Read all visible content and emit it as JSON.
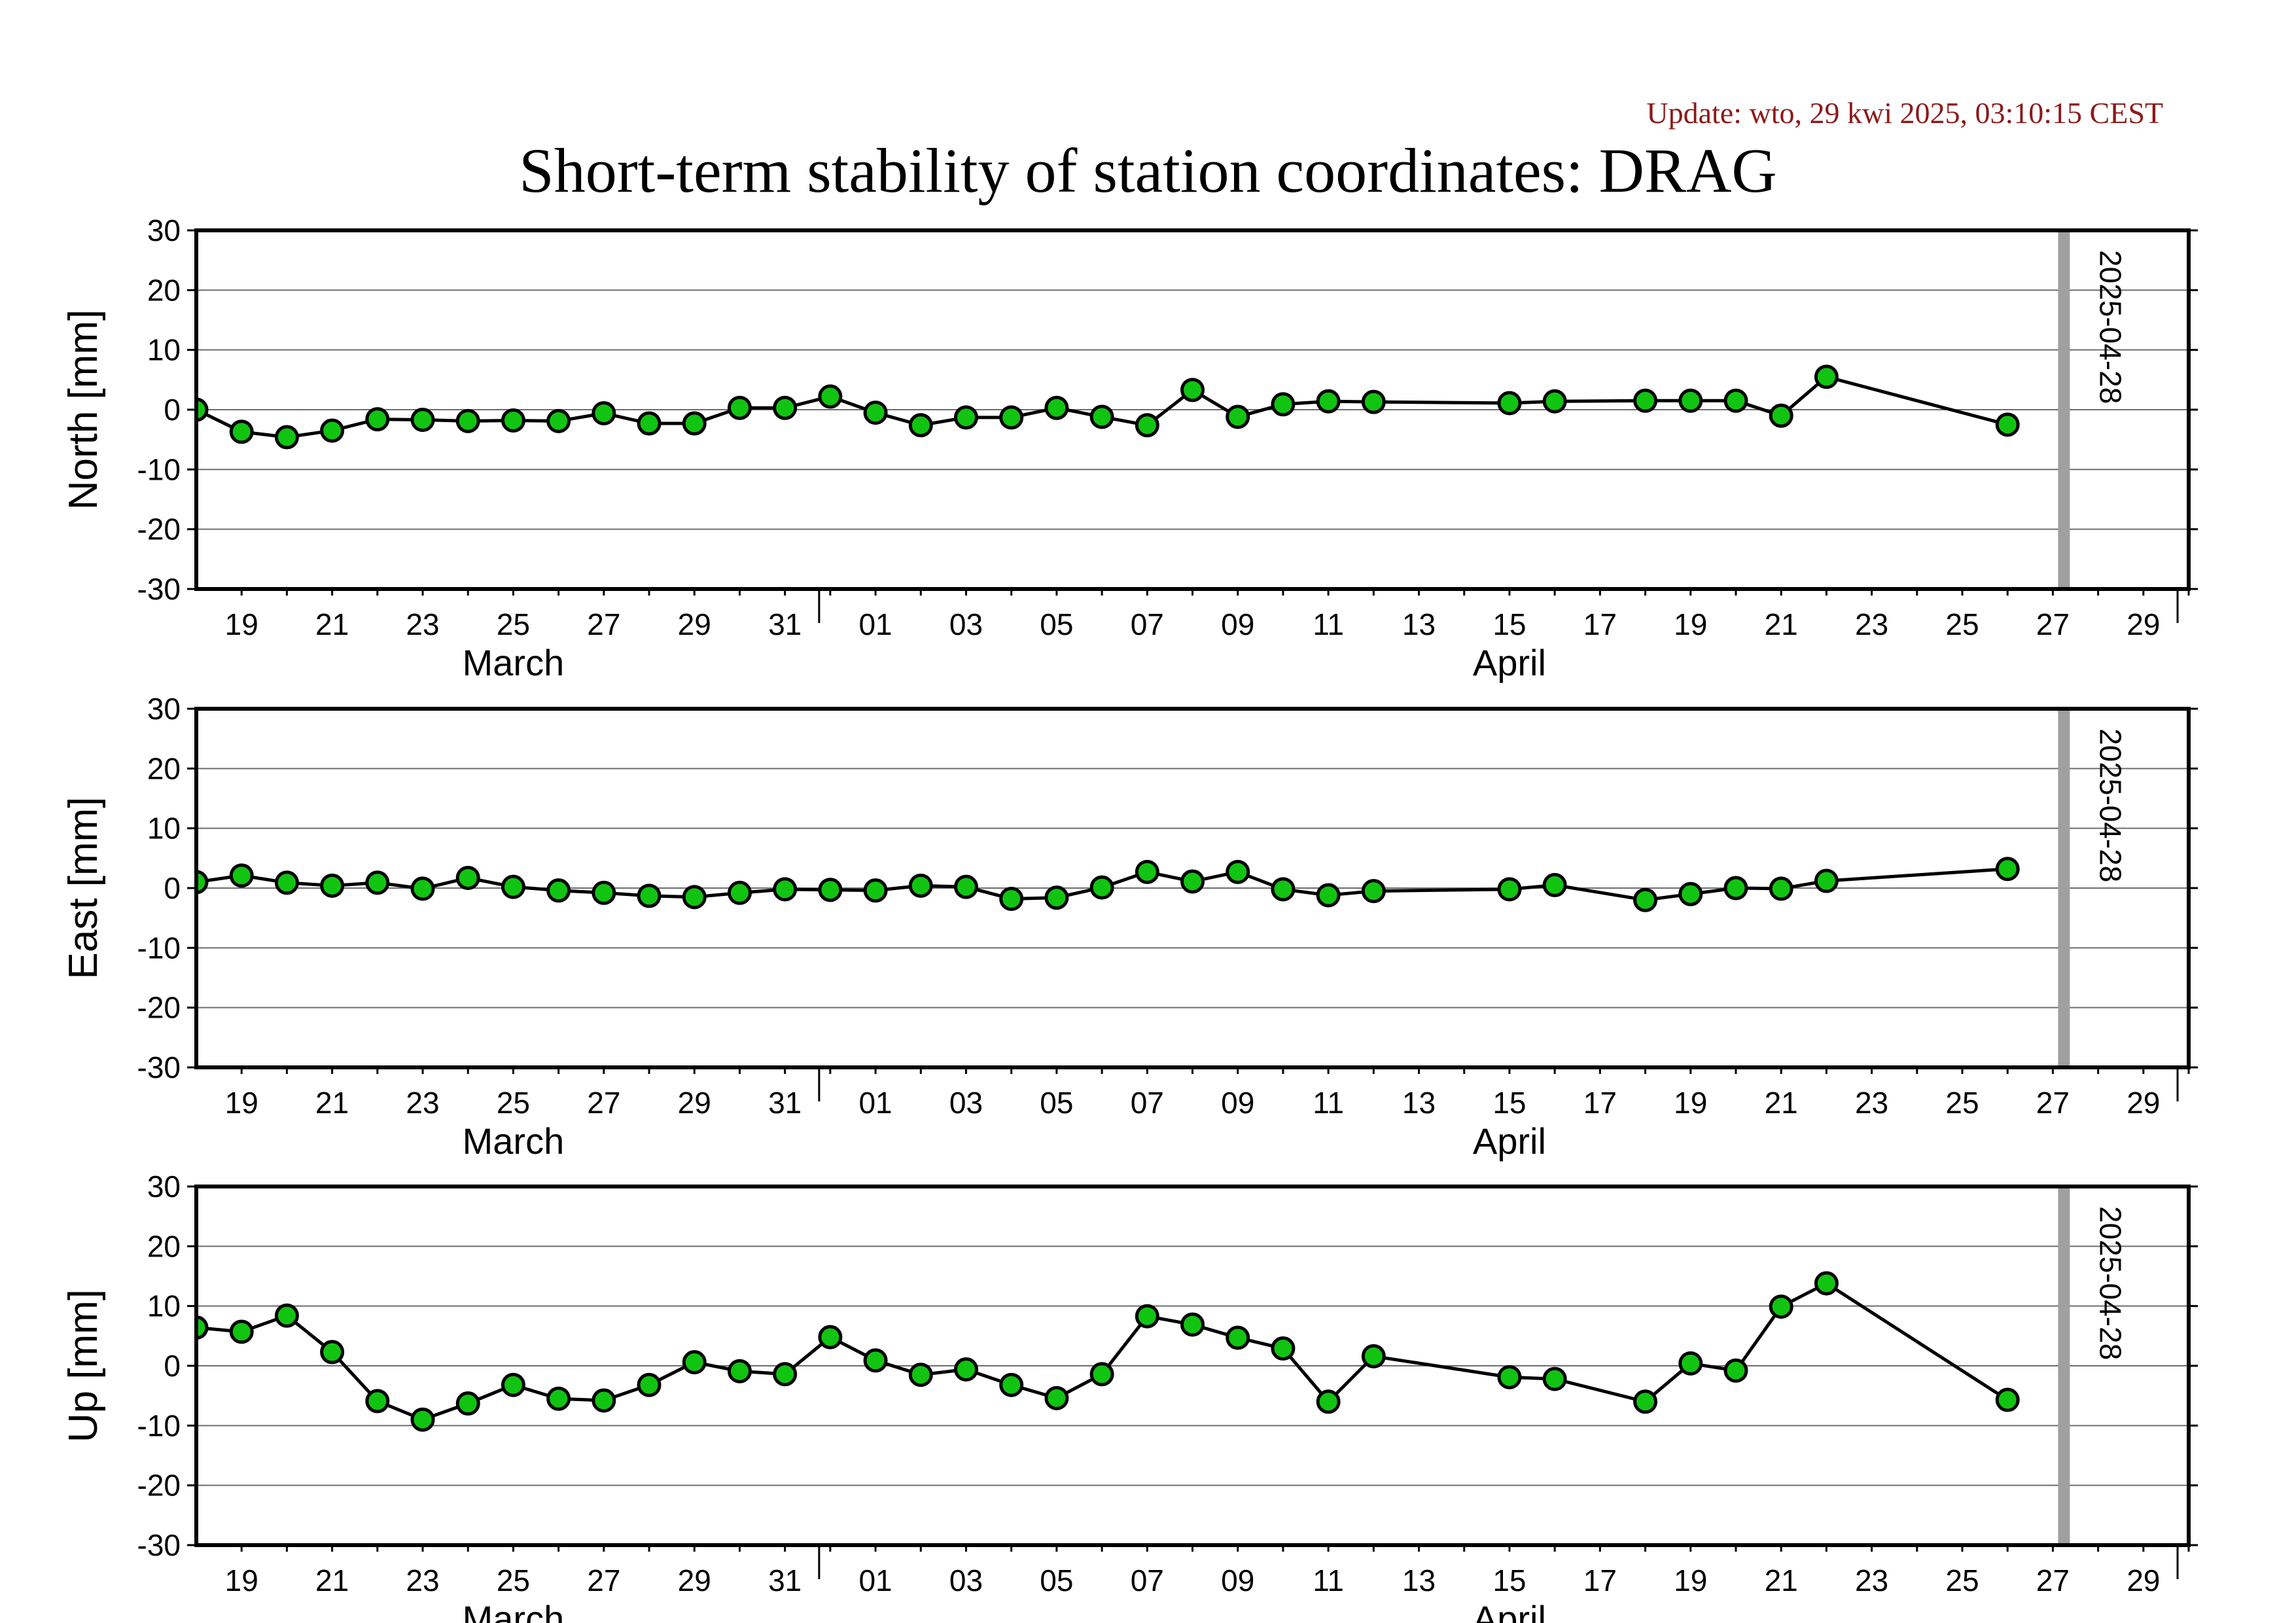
{
  "update_text": "Update: wto, 29 kwi 2025, 03:10:15 CEST",
  "title": "Short-term stability of station coordinates: DRAG",
  "colors": {
    "marker_fill": "#11c411",
    "marker_edge": "#000000",
    "line": "#000000",
    "grid": "#6e6e6e",
    "date_bar": "#a0a0a0"
  },
  "chart_data": [
    {
      "type": "line",
      "ylabel": "North [mm]",
      "ylim": [
        -30,
        30
      ],
      "yticks": [
        30,
        20,
        10,
        0,
        -10,
        -20,
        -30
      ],
      "grid": true,
      "x_range": [
        "2025-03-18",
        "2025-05-01"
      ],
      "x_tick_labels": [
        "19",
        "21",
        "23",
        "25",
        "27",
        "29",
        "31",
        "01",
        "03",
        "05",
        "07",
        "09",
        "11",
        "13",
        "15",
        "17",
        "19",
        "21",
        "23",
        "25",
        "27",
        "29",
        "01"
      ],
      "month_labels": [
        "March",
        "April"
      ],
      "marker_date_label": "2025-04-28",
      "x": [
        "2025-03-18",
        "2025-03-19",
        "2025-03-20",
        "2025-03-21",
        "2025-03-22",
        "2025-03-23",
        "2025-03-24",
        "2025-03-25",
        "2025-03-26",
        "2025-03-27",
        "2025-03-28",
        "2025-03-29",
        "2025-03-30",
        "2025-03-31",
        "2025-04-01",
        "2025-04-02",
        "2025-04-03",
        "2025-04-04",
        "2025-04-05",
        "2025-04-06",
        "2025-04-07",
        "2025-04-08",
        "2025-04-09",
        "2025-04-10",
        "2025-04-11",
        "2025-04-12",
        "2025-04-13",
        "2025-04-16",
        "2025-04-17",
        "2025-04-19",
        "2025-04-20",
        "2025-04-21",
        "2025-04-22",
        "2025-04-23",
        "2025-04-27"
      ],
      "values": [
        0,
        -3.7,
        -4.6,
        -3.5,
        -1.6,
        -1.7,
        -1.9,
        -1.8,
        -1.9,
        -0.6,
        -2.3,
        -2.3,
        0.3,
        0.3,
        2.2,
        -0.5,
        -2.6,
        -1.3,
        -1.3,
        0.3,
        -1.2,
        -2.6,
        3.3,
        -1.2,
        0.9,
        1.4,
        1.3,
        1.1,
        1.4,
        1.5,
        1.5,
        1.5,
        -1.0,
        5.5,
        -2.5
      ]
    },
    {
      "type": "line",
      "ylabel": "East [mm]",
      "ylim": [
        -30,
        30
      ],
      "yticks": [
        30,
        20,
        10,
        0,
        -10,
        -20,
        -30
      ],
      "grid": true,
      "x_range": [
        "2025-03-18",
        "2025-05-01"
      ],
      "x_tick_labels": [
        "19",
        "21",
        "23",
        "25",
        "27",
        "29",
        "31",
        "01",
        "03",
        "05",
        "07",
        "09",
        "11",
        "13",
        "15",
        "17",
        "19",
        "21",
        "23",
        "25",
        "27",
        "29",
        "01"
      ],
      "month_labels": [
        "March",
        "April"
      ],
      "marker_date_label": "2025-04-28",
      "x": [
        "2025-03-18",
        "2025-03-19",
        "2025-03-20",
        "2025-03-21",
        "2025-03-22",
        "2025-03-23",
        "2025-03-24",
        "2025-03-25",
        "2025-03-26",
        "2025-03-27",
        "2025-03-28",
        "2025-03-29",
        "2025-03-30",
        "2025-03-31",
        "2025-04-01",
        "2025-04-02",
        "2025-04-03",
        "2025-04-04",
        "2025-04-05",
        "2025-04-06",
        "2025-04-07",
        "2025-04-08",
        "2025-04-09",
        "2025-04-10",
        "2025-04-11",
        "2025-04-12",
        "2025-04-13",
        "2025-04-16",
        "2025-04-17",
        "2025-04-19",
        "2025-04-20",
        "2025-04-21",
        "2025-04-22",
        "2025-04-23",
        "2025-04-27"
      ],
      "values": [
        1.0,
        2.1,
        0.9,
        0.4,
        0.9,
        -0.1,
        1.7,
        0.2,
        -0.4,
        -0.8,
        -1.3,
        -1.5,
        -0.8,
        -0.2,
        -0.3,
        -0.4,
        0.4,
        0.2,
        -1.8,
        -1.6,
        0.1,
        2.7,
        1.1,
        2.7,
        -0.2,
        -1.2,
        -0.5,
        -0.2,
        0.5,
        -2.0,
        -1.0,
        0.0,
        -0.1,
        1.2,
        3.2
      ]
    },
    {
      "type": "line",
      "ylabel": "Up [mm]",
      "ylim": [
        -30,
        30
      ],
      "yticks": [
        30,
        20,
        10,
        0,
        -10,
        -20,
        -30
      ],
      "grid": true,
      "x_range": [
        "2025-03-18",
        "2025-05-01"
      ],
      "x_tick_labels": [
        "19",
        "21",
        "23",
        "25",
        "27",
        "29",
        "31",
        "01",
        "03",
        "05",
        "07",
        "09",
        "11",
        "13",
        "15",
        "17",
        "19",
        "21",
        "23",
        "25",
        "27",
        "29",
        "01"
      ],
      "month_labels": [
        "March",
        "April"
      ],
      "marker_date_label": "2025-04-28",
      "x": [
        "2025-03-18",
        "2025-03-19",
        "2025-03-20",
        "2025-03-21",
        "2025-03-22",
        "2025-03-23",
        "2025-03-24",
        "2025-03-25",
        "2025-03-26",
        "2025-03-27",
        "2025-03-28",
        "2025-03-29",
        "2025-03-30",
        "2025-03-31",
        "2025-04-01",
        "2025-04-02",
        "2025-04-03",
        "2025-04-04",
        "2025-04-05",
        "2025-04-06",
        "2025-04-07",
        "2025-04-08",
        "2025-04-09",
        "2025-04-10",
        "2025-04-11",
        "2025-04-12",
        "2025-04-13",
        "2025-04-16",
        "2025-04-17",
        "2025-04-19",
        "2025-04-20",
        "2025-04-21",
        "2025-04-22",
        "2025-04-23",
        "2025-04-27"
      ],
      "values": [
        6.4,
        5.7,
        8.4,
        2.3,
        -5.9,
        -9.0,
        -6.3,
        -3.2,
        -5.5,
        -5.8,
        -3.2,
        0.6,
        -0.9,
        -1.4,
        4.8,
        0.9,
        -1.5,
        -0.6,
        -3.2,
        -5.4,
        -1.4,
        8.3,
        6.9,
        4.7,
        2.9,
        -6.0,
        1.6,
        -1.9,
        -2.2,
        -6.0,
        0.4,
        -0.8,
        9.9,
        13.8,
        -5.7
      ]
    }
  ]
}
